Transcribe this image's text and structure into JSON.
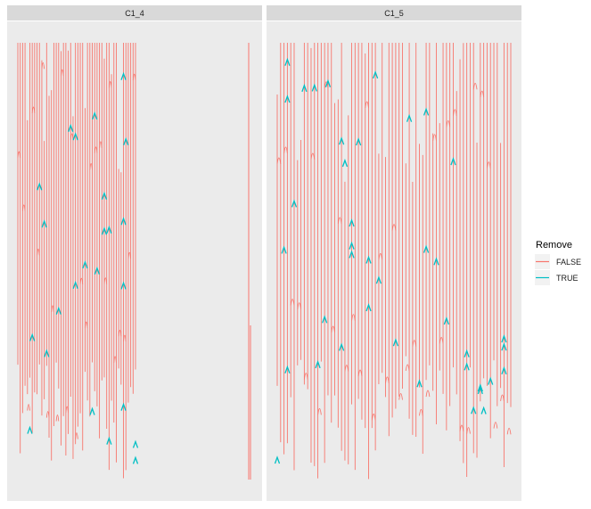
{
  "chart_data": {
    "type": "dendrogram",
    "facets": [
      "C1_4",
      "C1_5"
    ],
    "legend": {
      "title": "Remove",
      "entries": [
        {
          "label": "FALSE",
          "color": "#F8766D"
        },
        {
          "label": "TRUE",
          "color": "#00BFC4"
        }
      ]
    },
    "grid": false,
    "axis_labels_shown": false,
    "panels": [
      {
        "facet": "C1_4",
        "leaf_group_extent": [
          0.0,
          0.26
        ],
        "isolated_leaf_position": 0.96,
        "remove_true_count": 24
      },
      {
        "facet": "C1_5",
        "leaf_group_extent": [
          0.0,
          0.96
        ],
        "remove_true_count": 40
      }
    ]
  }
}
